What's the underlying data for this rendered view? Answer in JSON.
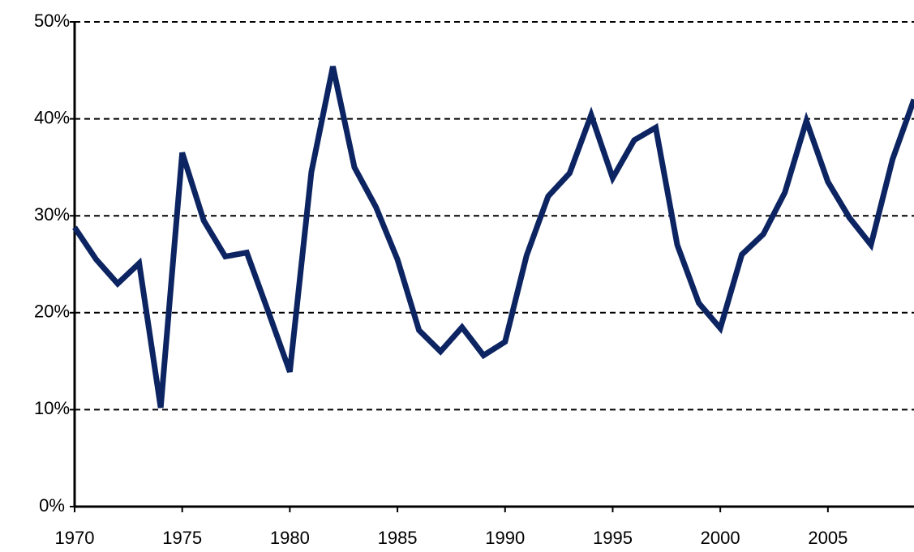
{
  "chart_data": {
    "type": "line",
    "x": [
      1970,
      1971,
      1972,
      1973,
      1974,
      1975,
      1976,
      1977,
      1978,
      1979,
      1980,
      1981,
      1982,
      1983,
      1984,
      1985,
      1986,
      1987,
      1988,
      1989,
      1990,
      1991,
      1992,
      1993,
      1994,
      1995,
      1996,
      1997,
      1998,
      1999,
      2000,
      2001,
      2002,
      2003,
      2004,
      2005,
      2006,
      2007,
      2008,
      2009
    ],
    "values": [
      28.8,
      25.5,
      23.0,
      25.1,
      10.2,
      36.5,
      29.5,
      25.8,
      26.2,
      20.1,
      13.9,
      34.5,
      45.4,
      35.0,
      30.9,
      25.5,
      18.2,
      16.0,
      18.5,
      15.6,
      17.0,
      25.9,
      32.0,
      34.4,
      40.4,
      33.9,
      37.8,
      39.1,
      27.0,
      21.0,
      18.4,
      26.0,
      28.1,
      32.4,
      39.8,
      33.5,
      29.8,
      27.0,
      35.8,
      42.0
    ],
    "color": "#0c2461",
    "xlim": [
      1970,
      2009
    ],
    "xticks": [
      1970,
      1975,
      1980,
      1985,
      1990,
      1995,
      2000,
      2005
    ],
    "ylim": [
      0,
      50
    ],
    "yticks": [
      {
        "value": 0,
        "label": "0%"
      },
      {
        "value": 10,
        "label": "10%"
      },
      {
        "value": 20,
        "label": "20%"
      },
      {
        "value": 30,
        "label": "30%"
      },
      {
        "value": 40,
        "label": "40%"
      },
      {
        "value": 50,
        "label": "50%"
      }
    ],
    "grid": true
  }
}
